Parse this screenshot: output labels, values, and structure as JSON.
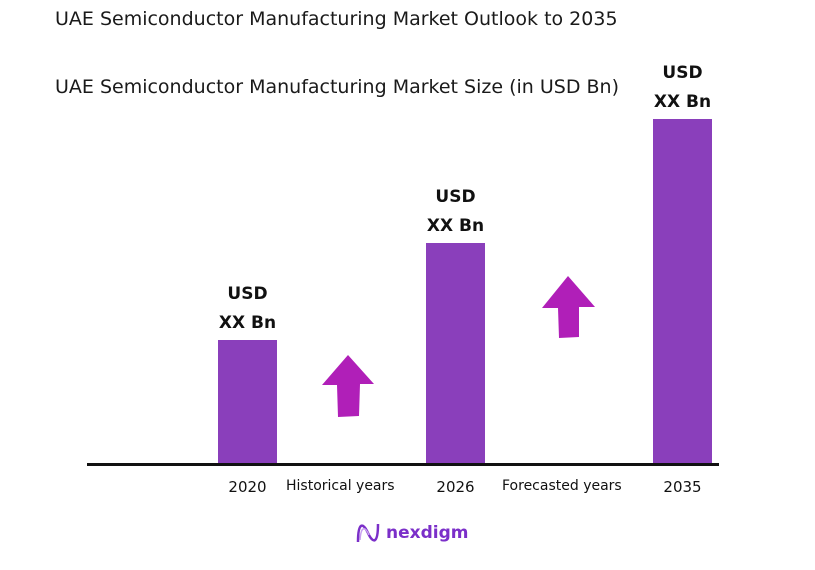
{
  "title": "UAE Semiconductor Manufacturing Market Outlook to 2035",
  "subtitle": "UAE Semiconductor Manufacturing Market Size (in USD Bn)",
  "chart_data": {
    "type": "bar",
    "categories": [
      "2020",
      "2026",
      "2035"
    ],
    "values": [
      36,
      64,
      100
    ],
    "value_note": "relative bar height, % of 2035 bar; actual values not printed",
    "data_labels": [
      {
        "line1": "USD",
        "line2": "XX Bn"
      },
      {
        "line1": "USD",
        "line2": "XX Bn"
      },
      {
        "line1": "USD",
        "line2": "XX Bn"
      }
    ],
    "period_labels": [
      "Historical years",
      "Forecasted years"
    ],
    "bar_color": "#8a3fbb",
    "arrow_color": "#b01fb8",
    "grid": false
  },
  "brand": {
    "name": "nexdigm",
    "color": "#7b2fc9"
  }
}
